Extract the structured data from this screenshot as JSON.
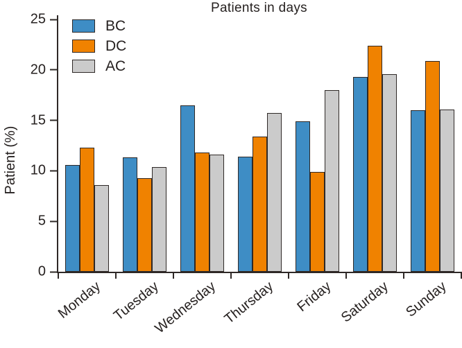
{
  "chart_data": {
    "type": "bar",
    "title": "Patients in days",
    "xlabel": "",
    "ylabel": "Patient (%)",
    "categories": [
      "Monday",
      "Tuesday",
      "Wednesday",
      "Thursday",
      "Friday",
      "Saturday",
      "Sunday"
    ],
    "series": [
      {
        "name": "BC",
        "color": "#3E8DC5",
        "values": [
          10.6,
          11.3,
          16.5,
          11.4,
          14.9,
          19.3,
          16.0
        ]
      },
      {
        "name": "DC",
        "color": "#F08200",
        "values": [
          12.3,
          9.3,
          11.8,
          13.4,
          9.9,
          22.4,
          20.9
        ]
      },
      {
        "name": "AC",
        "color": "#CBCBCB",
        "values": [
          8.6,
          10.4,
          11.6,
          15.7,
          18.0,
          19.6,
          16.1
        ]
      }
    ],
    "ylim": [
      0,
      25
    ],
    "yticks": [
      0,
      5,
      10,
      15,
      20,
      25
    ],
    "grid": false,
    "legend_position": "upper-left-inside",
    "bar_outline_color": "#2E2826",
    "axis_color": "#2E2826",
    "text_color": "#262120",
    "background_color": "#ffffff"
  }
}
